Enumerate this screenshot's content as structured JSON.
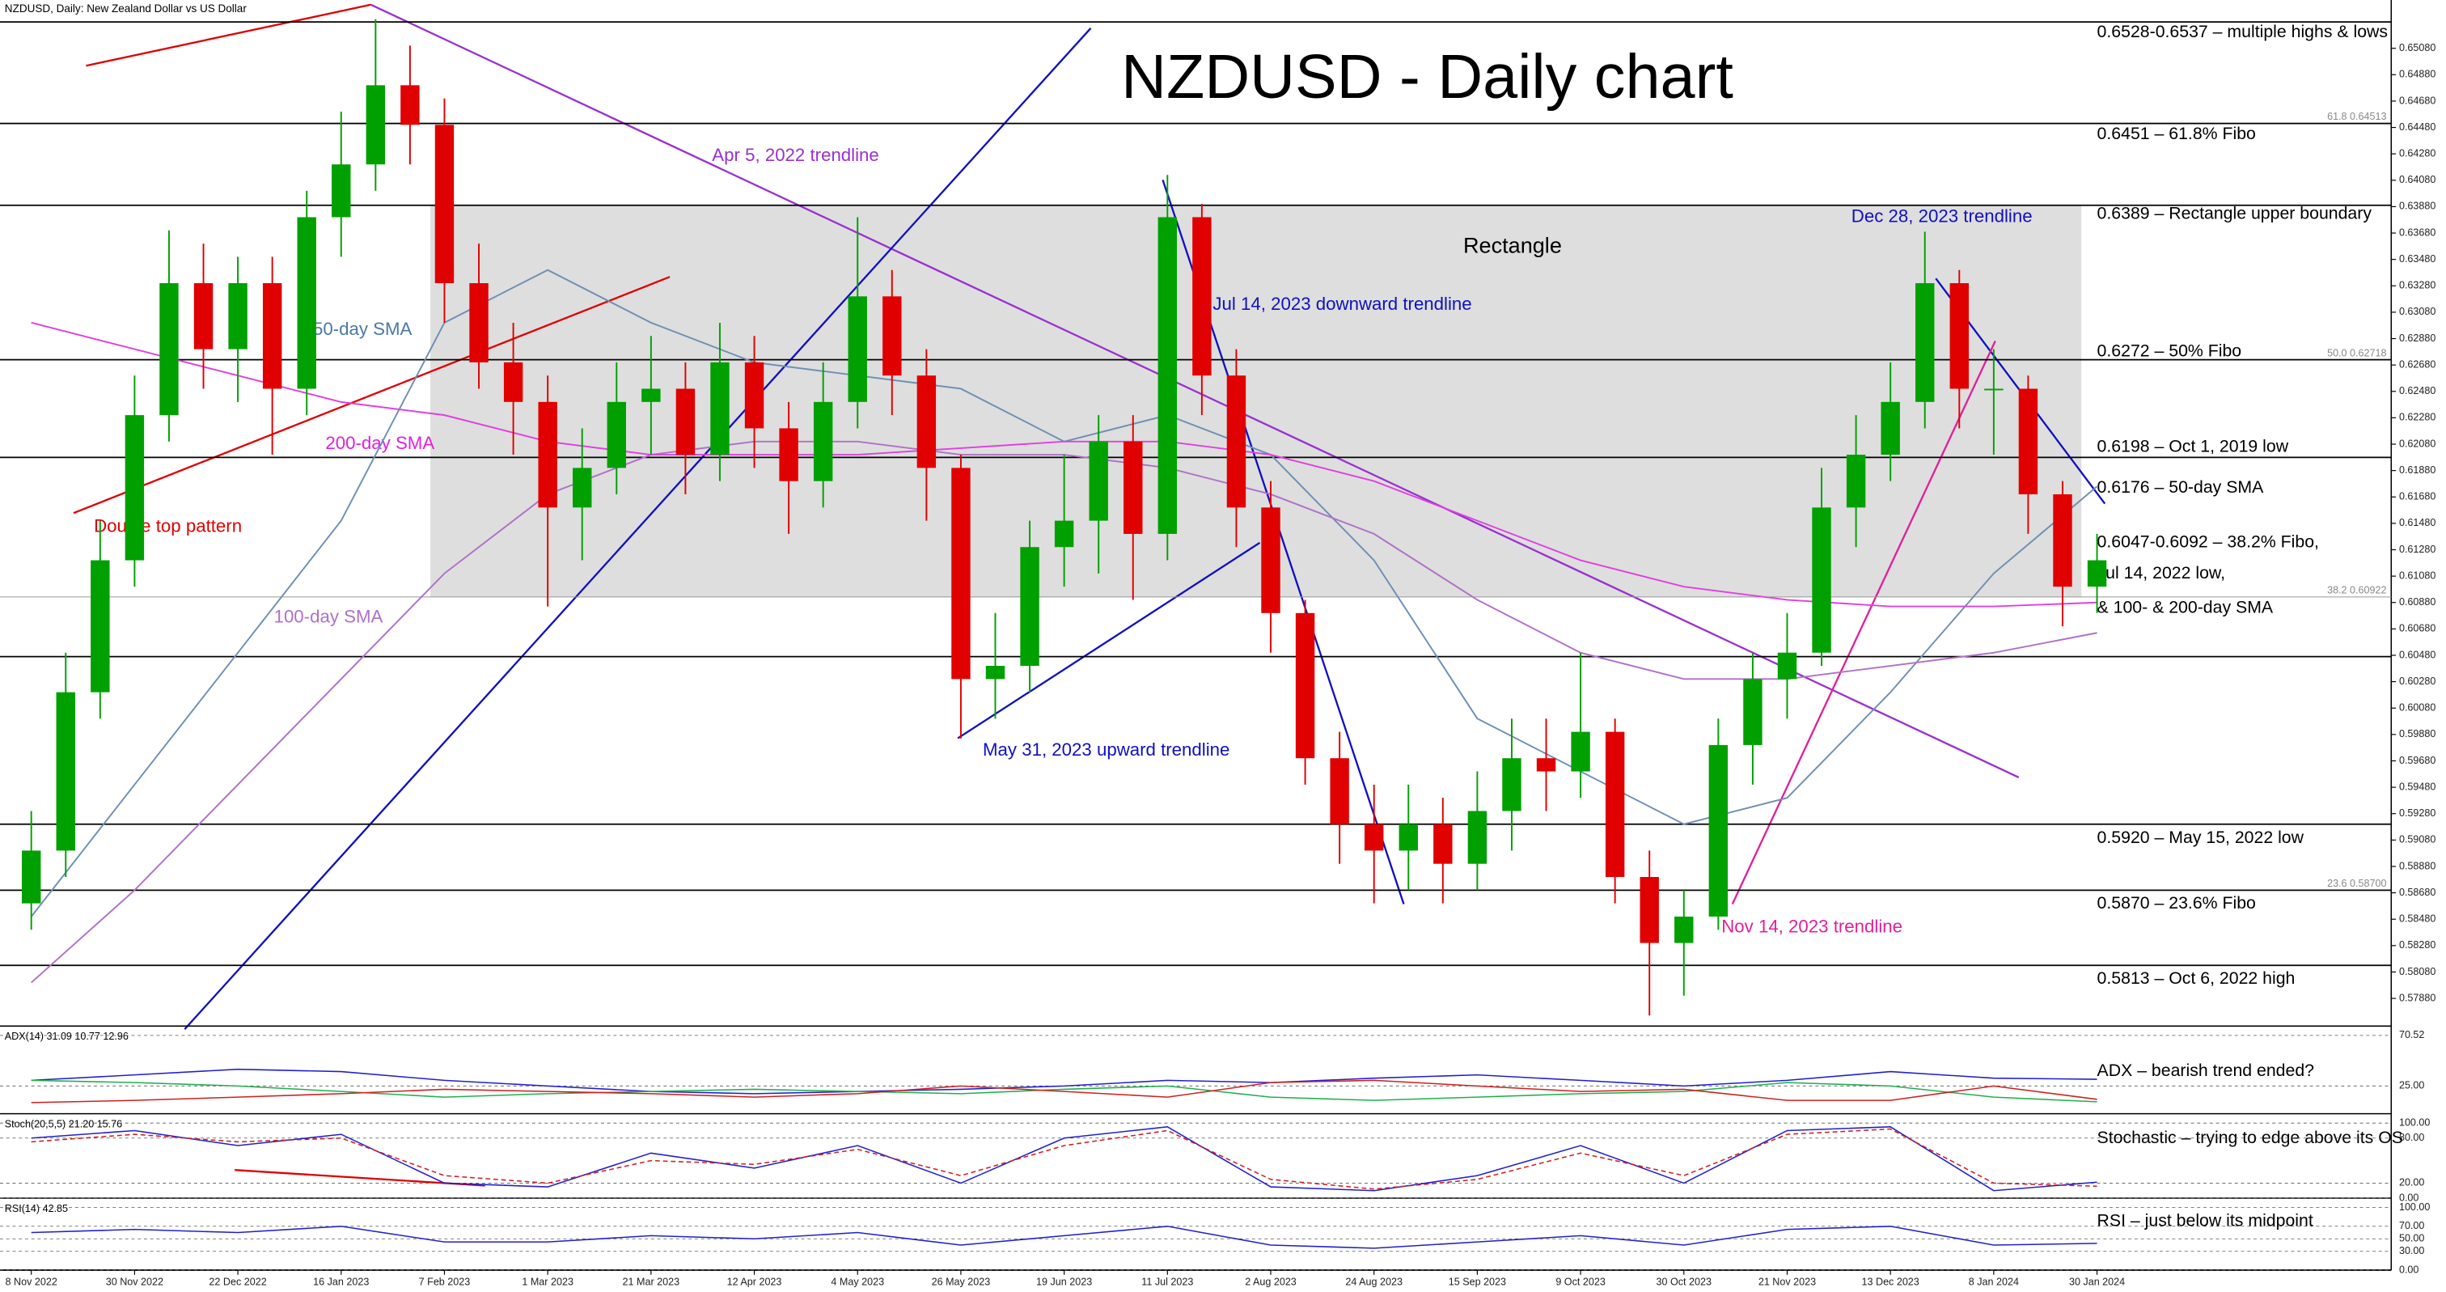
{
  "chart_data": {
    "type": "candlestick",
    "header": "NZDUSD, Daily:  New Zealand Dollar vs US Dollar",
    "title": "NZDUSD - Daily chart",
    "categories": [
      "8 Nov 2022",
      null,
      null,
      "30 Nov 2022",
      null,
      null,
      "22 Dec 2022",
      null,
      null,
      "16 Jan 2023",
      null,
      null,
      "7 Feb 2023",
      null,
      null,
      "1 Mar 2023",
      null,
      null,
      "21 Mar 2023",
      null,
      null,
      "12 Apr 2023",
      null,
      null,
      "4 May 2023",
      null,
      null,
      "26 May 2023",
      null,
      null,
      "19 Jun 2023",
      null,
      null,
      "11 Jul 2023",
      null,
      null,
      "2 Aug 2023",
      null,
      null,
      "24 Aug 2023",
      null,
      null,
      "15 Sep 2023",
      null,
      null,
      "9 Oct 2023",
      null,
      null,
      "30 Oct 2023",
      null,
      null,
      "21 Nov 2023",
      null,
      null,
      "13 Dec 2023",
      null,
      null,
      "8 Jan 2024",
      null,
      null,
      "30 Jan 2024"
    ],
    "open": [
      0.586,
      0.59,
      0.602,
      0.612,
      0.623,
      0.633,
      0.628,
      0.633,
      0.625,
      0.638,
      0.642,
      0.648,
      0.645,
      0.633,
      0.627,
      0.624,
      0.616,
      0.619,
      0.624,
      0.625,
      0.62,
      0.627,
      0.622,
      0.618,
      0.624,
      0.632,
      0.626,
      0.619,
      0.603,
      0.604,
      0.613,
      0.615,
      0.621,
      0.614,
      0.638,
      0.626,
      0.616,
      0.608,
      0.597,
      0.592,
      0.59,
      0.592,
      0.589,
      0.593,
      0.597,
      0.596,
      0.599,
      0.588,
      0.583,
      0.585,
      0.598,
      0.603,
      0.605,
      0.616,
      0.62,
      0.624,
      0.633,
      0.625,
      0.625,
      0.617,
      0.61
    ],
    "close": [
      0.59,
      0.602,
      0.612,
      0.623,
      0.633,
      0.628,
      0.633,
      0.625,
      0.638,
      0.642,
      0.648,
      0.645,
      0.633,
      0.627,
      0.624,
      0.616,
      0.619,
      0.624,
      0.625,
      0.62,
      0.627,
      0.622,
      0.618,
      0.624,
      0.632,
      0.626,
      0.619,
      0.603,
      0.604,
      0.613,
      0.615,
      0.621,
      0.614,
      0.638,
      0.626,
      0.616,
      0.608,
      0.597,
      0.592,
      0.59,
      0.592,
      0.589,
      0.593,
      0.597,
      0.596,
      0.599,
      0.588,
      0.583,
      0.585,
      0.598,
      0.603,
      0.605,
      0.616,
      0.62,
      0.624,
      0.633,
      0.625,
      0.625,
      0.617,
      0.61,
      0.612
    ],
    "high": [
      0.593,
      0.605,
      0.615,
      0.626,
      0.637,
      0.636,
      0.635,
      0.635,
      0.64,
      0.646,
      0.653,
      0.651,
      0.647,
      0.636,
      0.63,
      0.626,
      0.622,
      0.627,
      0.629,
      0.627,
      0.63,
      0.629,
      0.624,
      0.627,
      0.638,
      0.634,
      0.628,
      0.62,
      0.608,
      0.615,
      0.62,
      0.623,
      0.623,
      0.6412,
      0.639,
      0.628,
      0.618,
      0.609,
      0.599,
      0.595,
      0.595,
      0.594,
      0.596,
      0.6,
      0.6,
      0.605,
      0.6,
      0.59,
      0.587,
      0.6,
      0.605,
      0.608,
      0.619,
      0.623,
      0.627,
      0.6369,
      0.634,
      0.628,
      0.626,
      0.618,
      0.614
    ],
    "low": [
      0.584,
      0.588,
      0.6,
      0.61,
      0.621,
      0.625,
      0.624,
      0.62,
      0.623,
      0.635,
      0.64,
      0.642,
      0.63,
      0.625,
      0.62,
      0.6085,
      0.612,
      0.617,
      0.62,
      0.617,
      0.618,
      0.619,
      0.614,
      0.616,
      0.622,
      0.623,
      0.615,
      0.5985,
      0.6,
      0.602,
      0.61,
      0.611,
      0.609,
      0.612,
      0.623,
      0.613,
      0.605,
      0.595,
      0.589,
      0.586,
      0.587,
      0.586,
      0.587,
      0.59,
      0.593,
      0.594,
      0.586,
      0.5775,
      0.579,
      0.584,
      0.595,
      0.6,
      0.604,
      0.613,
      0.618,
      0.622,
      0.622,
      0.62,
      0.614,
      0.607,
      0.608
    ],
    "up_color": "#00a000",
    "down_color": "#e00000",
    "ylim": [
      0.5767,
      0.6528
    ],
    "yticks": [
      {
        "value": 0.5788,
        "label": "0.57880"
      },
      {
        "value": 0.5808,
        "label": "0.58080"
      },
      {
        "value": 0.5828,
        "label": "0.58280"
      },
      {
        "value": 0.5848,
        "label": "0.58480"
      },
      {
        "value": 0.5868,
        "label": "0.58680"
      },
      {
        "value": 0.5888,
        "label": "0.58880"
      },
      {
        "value": 0.5908,
        "label": "0.59080"
      },
      {
        "value": 0.5928,
        "label": "0.59280"
      },
      {
        "value": 0.5948,
        "label": "0.59480"
      },
      {
        "value": 0.5968,
        "label": "0.59680"
      },
      {
        "value": 0.5988,
        "label": "0.59880"
      },
      {
        "value": 0.6008,
        "label": "0.60080"
      },
      {
        "value": 0.6028,
        "label": "0.60280"
      },
      {
        "value": 0.6048,
        "label": "0.60480"
      },
      {
        "value": 0.6068,
        "label": "0.60680"
      },
      {
        "value": 0.6088,
        "label": "0.60880"
      },
      {
        "value": 0.6108,
        "label": "0.61080"
      },
      {
        "value": 0.6128,
        "label": "0.61280"
      },
      {
        "value": 0.6148,
        "label": "0.61480"
      },
      {
        "value": 0.6168,
        "label": "0.61680"
      },
      {
        "value": 0.6188,
        "label": "0.61880"
      },
      {
        "value": 0.6208,
        "label": "0.62080"
      },
      {
        "value": 0.6228,
        "label": "0.62280"
      },
      {
        "value": 0.6248,
        "label": "0.62480"
      },
      {
        "value": 0.6268,
        "label": "0.62680"
      },
      {
        "value": 0.6288,
        "label": "0.62880"
      },
      {
        "value": 0.6308,
        "label": "0.63080"
      },
      {
        "value": 0.6328,
        "label": "0.63280"
      },
      {
        "value": 0.6348,
        "label": "0.63480"
      },
      {
        "value": 0.6368,
        "label": "0.63680"
      },
      {
        "value": 0.6388,
        "label": "0.63880"
      },
      {
        "value": 0.6408,
        "label": "0.64080"
      },
      {
        "value": 0.6428,
        "label": "0.64280"
      },
      {
        "value": 0.6448,
        "label": "0.64480"
      },
      {
        "value": 0.6468,
        "label": "0.64680"
      },
      {
        "value": 0.6488,
        "label": "0.64880"
      },
      {
        "value": 0.6508,
        "label": "0.65080"
      }
    ],
    "sma_x": [
      0,
      3,
      6,
      9,
      12,
      15,
      18,
      21,
      24,
      27,
      30,
      33,
      36,
      39,
      42,
      45,
      48,
      51,
      54,
      57,
      60
    ],
    "sma": [
      {
        "color": "#6d8fb5",
        "values": [
          0.585,
          0.595,
          0.605,
          0.615,
          0.63,
          0.634,
          0.63,
          0.627,
          0.626,
          0.625,
          0.621,
          0.623,
          0.62,
          0.612,
          0.6,
          0.596,
          0.592,
          0.594,
          0.602,
          0.611,
          0.6176
        ]
      },
      {
        "color": "#b070c8",
        "values": [
          0.58,
          0.587,
          0.595,
          0.603,
          0.611,
          0.617,
          0.62,
          0.621,
          0.621,
          0.62,
          0.62,
          0.619,
          0.617,
          0.614,
          0.609,
          0.605,
          0.603,
          0.603,
          0.604,
          0.605,
          0.6065
        ]
      },
      {
        "color": "#e040e0",
        "values": [
          0.63,
          0.628,
          0.626,
          0.624,
          0.623,
          0.621,
          0.62,
          0.62,
          0.62,
          0.6205,
          0.621,
          0.621,
          0.62,
          0.618,
          0.615,
          0.612,
          0.61,
          0.609,
          0.6085,
          0.6085,
          0.6088
        ]
      }
    ],
    "rectangle_range": [
      0.6092,
      0.6389
    ],
    "levels": [
      0.6528,
      0.6451,
      0.6389,
      0.6272,
      0.6198,
      0.6047,
      0.592,
      0.587,
      0.5813
    ],
    "level_notes": [
      "0.6528-0.6537 – multiple highs & lows",
      "0.6451 – 61.8% Fibo",
      "0.6389 – Rectangle upper boundary",
      "0.6272 – 50% Fibo",
      "0.6198 – Oct 1, 2019 low",
      "0.6176 – 50-day SMA",
      "0.6047-0.6092 – 38.2% Fibo,",
      "Jul 14, 2022 low,",
      "& 100- & 200-day SMA",
      "0.5920 – May 15, 2022 low",
      "0.5870 – 23.6% Fibo",
      "0.5813 – Oct 6, 2022 high"
    ],
    "fibo": [
      {
        "value": 0.64513,
        "label": "61.8 0.64513"
      },
      {
        "value": 0.62718,
        "label": "50.0 0.62718"
      },
      {
        "value": 0.60922,
        "label": "38.2 0.60922"
      },
      {
        "value": 0.587,
        "label": "23.6 0.58700"
      }
    ],
    "annotations": [
      "Apr 5, 2022 trendline",
      "Jul 14, 2023 downward trendline",
      "Dec 28, 2023 trendline",
      "Rectangle",
      "50-day SMA",
      "200-day SMA",
      "Double top pattern",
      "100-day SMA",
      "May 31, 2023 upward trendline",
      "Nov 14, 2023 trendline"
    ],
    "indicators": [
      {
        "title": "ADX(14) 31.09 10.77 12.96",
        "note": "ADX – bearish trend ended?",
        "ylim": [
          0,
          70.52
        ],
        "yticks": [
          {
            "value": 70.52,
            "label": "70.52"
          },
          {
            "value": 25,
            "label": "25.00"
          }
        ],
        "series": [
          {
            "color": "#2020d0",
            "values": [
              30,
              35,
              40,
              38,
              30,
              25,
              20,
              18,
              20,
              22,
              25,
              30,
              28,
              32,
              35,
              30,
              25,
              30,
              38,
              32,
              31.09
            ]
          },
          {
            "color": "#20b050",
            "values": [
              30,
              28,
              25,
              20,
              15,
              18,
              20,
              22,
              20,
              18,
              22,
              25,
              15,
              12,
              15,
              18,
              20,
              28,
              25,
              15,
              10.77
            ]
          },
          {
            "color": "#d02020",
            "values": [
              10,
              12,
              15,
              18,
              22,
              20,
              18,
              15,
              18,
              25,
              20,
              15,
              28,
              30,
              25,
              20,
              22,
              12,
              12,
              25,
              12.96
            ]
          }
        ]
      },
      {
        "title": "Stoch(20,5,5) 21.20 15.76",
        "note": "Stochastic – trying to edge above its OS",
        "ylim": [
          0,
          100
        ],
        "yticks": [
          {
            "value": 0,
            "label": "0.00"
          },
          {
            "value": 20,
            "label": "20.00"
          },
          {
            "value": 80,
            "label": "80.00"
          },
          {
            "value": 100,
            "label": "100.00"
          }
        ],
        "series": [
          {
            "color": "#2020d0",
            "values": [
              80,
              90,
              70,
              85,
              20,
              15,
              60,
              40,
              70,
              20,
              80,
              95,
              15,
              10,
              30,
              70,
              20,
              90,
              95,
              10,
              21.2
            ]
          },
          {
            "color": "#d02020",
            "dashed": true,
            "values": [
              75,
              85,
              75,
              80,
              30,
              20,
              50,
              45,
              65,
              30,
              70,
              90,
              25,
              12,
              25,
              60,
              30,
              85,
              92,
              20,
              15.76
            ]
          }
        ]
      },
      {
        "title": "RSI(14) 42.85",
        "note": "RSI – just below its midpoint",
        "ylim": [
          0,
          100
        ],
        "yticks": [
          {
            "value": 0,
            "label": "0.00"
          },
          {
            "value": 30,
            "label": "30.00"
          },
          {
            "value": 50,
            "label": "50.00"
          },
          {
            "value": 70,
            "label": "70.00"
          },
          {
            "value": 100,
            "label": "100.00"
          }
        ],
        "series": [
          {
            "color": "#2020d0",
            "values": [
              60,
              65,
              60,
              70,
              45,
              45,
              55,
              50,
              60,
              40,
              55,
              70,
              40,
              35,
              45,
              55,
              40,
              65,
              70,
              40,
              42.85
            ]
          }
        ]
      }
    ]
  }
}
